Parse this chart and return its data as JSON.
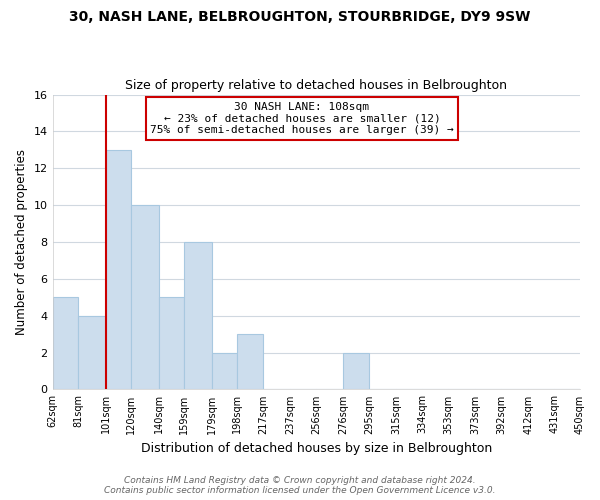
{
  "title": "30, NASH LANE, BELBROUGHTON, STOURBRIDGE, DY9 9SW",
  "subtitle": "Size of property relative to detached houses in Belbroughton",
  "xlabel": "Distribution of detached houses by size in Belbroughton",
  "ylabel": "Number of detached properties",
  "bins": [
    62,
    81,
    101,
    120,
    140,
    159,
    179,
    198,
    217,
    237,
    256,
    276,
    295,
    315,
    334,
    353,
    373,
    392,
    412,
    431,
    450
  ],
  "bin_labels": [
    "62sqm",
    "81sqm",
    "101sqm",
    "120sqm",
    "140sqm",
    "159sqm",
    "179sqm",
    "198sqm",
    "217sqm",
    "237sqm",
    "256sqm",
    "276sqm",
    "295sqm",
    "315sqm",
    "334sqm",
    "353sqm",
    "373sqm",
    "392sqm",
    "412sqm",
    "431sqm",
    "450sqm"
  ],
  "counts": [
    5,
    4,
    13,
    10,
    5,
    8,
    2,
    3,
    0,
    0,
    0,
    2,
    0,
    0,
    0,
    0,
    0,
    0,
    0,
    0
  ],
  "bar_color": "#ccdded",
  "bar_edge_color": "#a8c8e0",
  "reference_line_color": "#cc0000",
  "annotation_text": "30 NASH LANE: 108sqm\n← 23% of detached houses are smaller (12)\n75% of semi-detached houses are larger (39) →",
  "annotation_box_color": "#ffffff",
  "annotation_box_edge_color": "#cc0000",
  "ylim": [
    0,
    16
  ],
  "yticks": [
    0,
    2,
    4,
    6,
    8,
    10,
    12,
    14,
    16
  ],
  "footer": "Contains HM Land Registry data © Crown copyright and database right 2024.\nContains public sector information licensed under the Open Government Licence v3.0.",
  "background_color": "#ffffff",
  "plot_background_color": "#ffffff",
  "grid_color": "#d0d8e0"
}
